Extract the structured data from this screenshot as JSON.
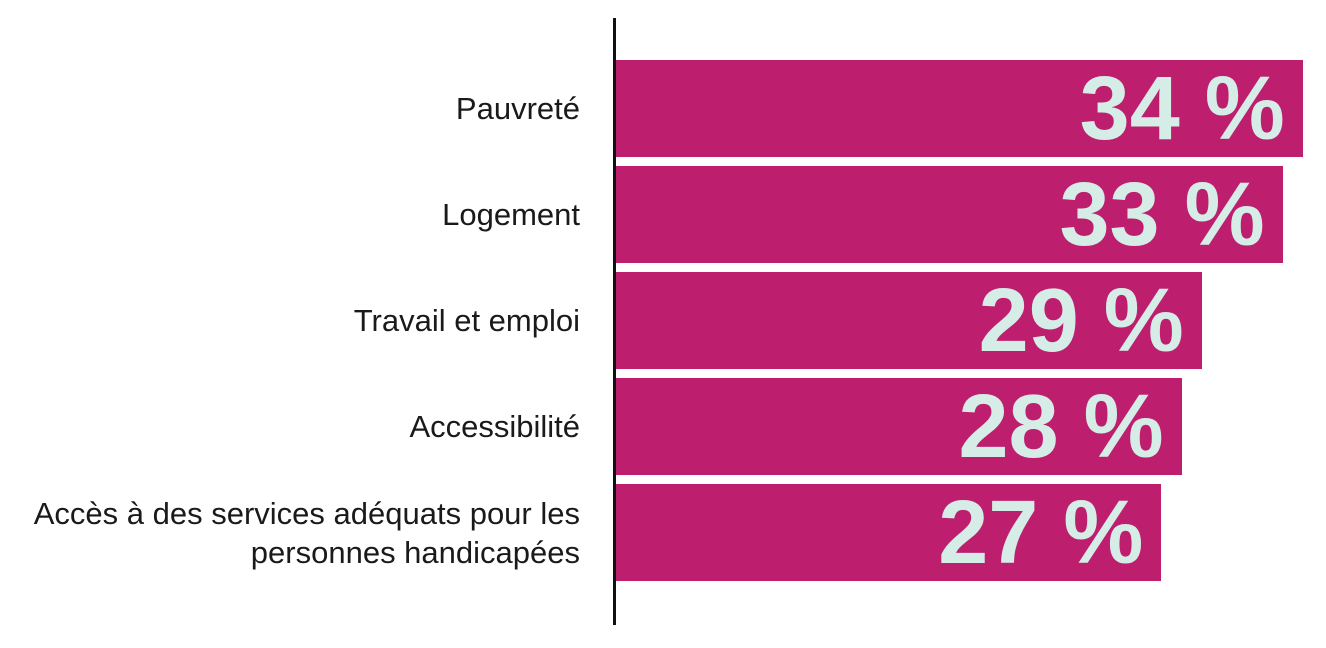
{
  "chart_data": {
    "type": "bar",
    "orientation": "horizontal",
    "categories": [
      "Pauvreté",
      "Logement",
      "Travail et emploi",
      "Accessibilité",
      "Accès à des services adéquats pour les personnes handicapées"
    ],
    "values": [
      34,
      33,
      29,
      28,
      27
    ],
    "value_labels": [
      "34 %",
      "33 %",
      "29 %",
      "28 %",
      "27 %"
    ],
    "color": "#be1e6e",
    "label_color": "#d6ece6"
  }
}
